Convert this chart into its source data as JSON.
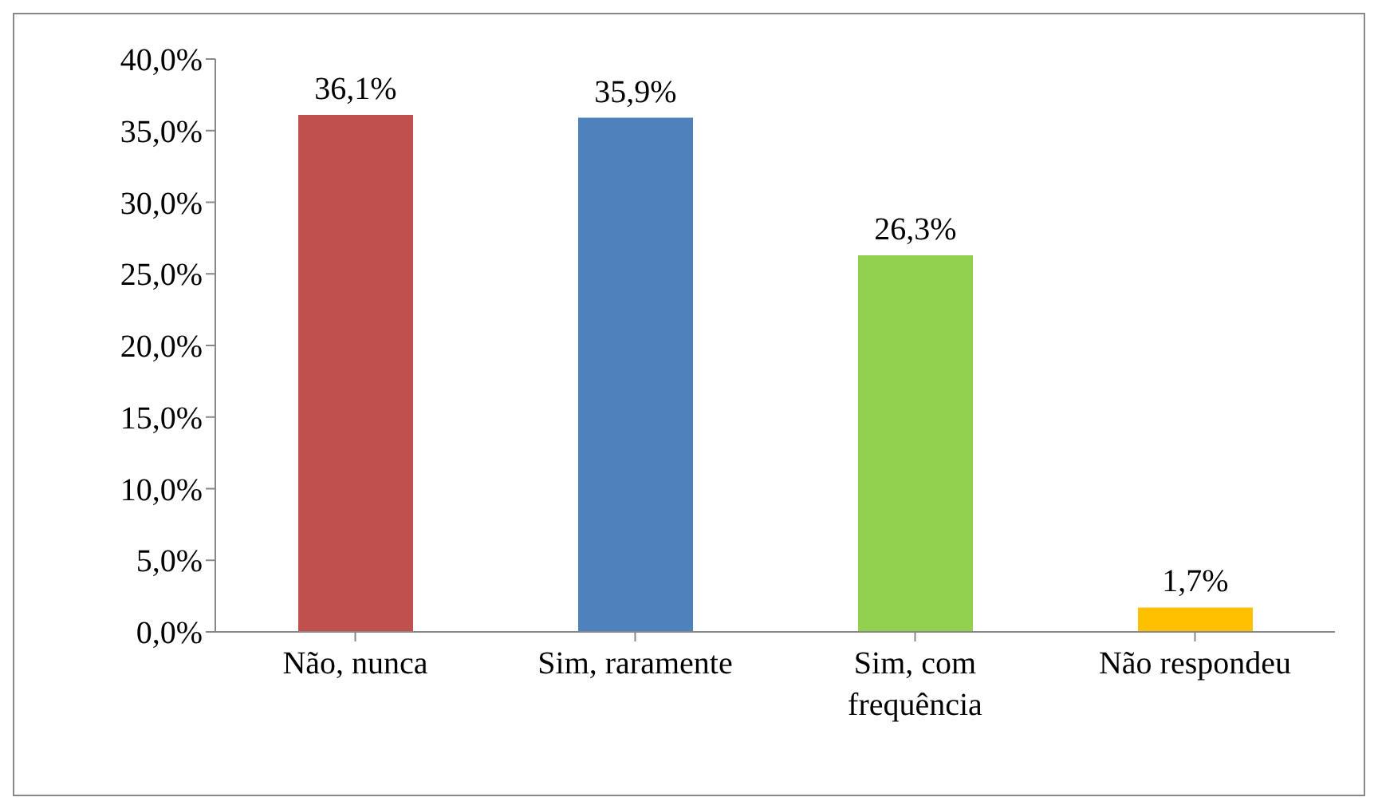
{
  "chart_data": {
    "type": "bar",
    "categories": [
      "Não, nunca",
      "Sim, raramente",
      "Sim, com frequência",
      "Não respondeu"
    ],
    "values": [
      36.1,
      35.9,
      26.3,
      1.7
    ],
    "colors": [
      "#c0504d",
      "#4f81bd",
      "#92d050",
      "#ffc000"
    ],
    "value_labels": [
      "36,1%",
      "35,9%",
      "26,3%",
      "1,7%"
    ],
    "ylim": [
      0,
      40
    ],
    "yticks": [
      {
        "value": 0,
        "label": "0,0%"
      },
      {
        "value": 5,
        "label": "5,0%"
      },
      {
        "value": 10,
        "label": "10,0%"
      },
      {
        "value": 15,
        "label": "15,0%"
      },
      {
        "value": 20,
        "label": "20,0%"
      },
      {
        "value": 25,
        "label": "25,0%"
      },
      {
        "value": 30,
        "label": "30,0%"
      },
      {
        "value": 35,
        "label": "35,0%"
      },
      {
        "value": 40,
        "label": "40,0%"
      }
    ],
    "grid": false,
    "legend": false
  }
}
